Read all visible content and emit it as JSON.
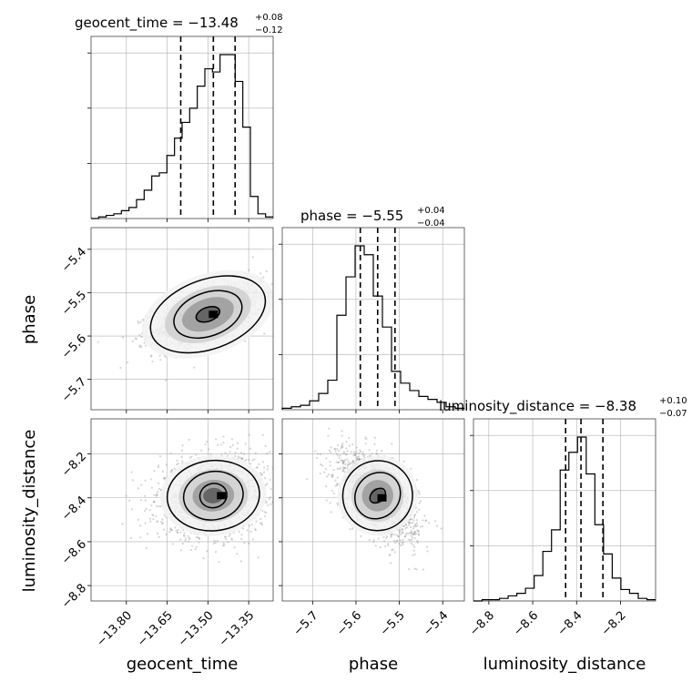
{
  "chart_data": {
    "type": "corner",
    "parameters": [
      "geocent_time",
      "phase",
      "luminosity_distance"
    ],
    "grid": true,
    "colors": {
      "line": "#000000",
      "scatter": "#888888",
      "grid": "#b0b0b0",
      "frame": "#444444"
    },
    "titles": [
      {
        "param": "geocent_time",
        "prefix": "geocent_time = −13.48",
        "plus": "+0.08",
        "minus": "−0.12"
      },
      {
        "param": "phase",
        "prefix": "phase = −5.55",
        "plus": "+0.04",
        "minus": "−0.04"
      },
      {
        "param": "luminosity_distance",
        "prefix": "luminosity_distance = −8.38",
        "plus": "+0.10",
        "minus": "−0.07"
      }
    ],
    "axes": {
      "geocent_time": {
        "range": [
          -13.93,
          -13.26
        ],
        "ticks": [
          -13.8,
          -13.65,
          -13.5,
          -13.35
        ],
        "tick_labels": [
          "−13.80",
          "−13.65",
          "−13.50",
          "−13.35"
        ]
      },
      "phase": {
        "range": [
          -5.77,
          -5.35
        ],
        "ticks": [
          -5.7,
          -5.6,
          -5.5,
          -5.4
        ],
        "tick_labels": [
          "−5.7",
          "−5.6",
          "−5.5",
          "−5.4"
        ]
      },
      "luminosity_distance": {
        "range": [
          -8.87,
          -8.04
        ],
        "ticks": [
          -8.8,
          -8.6,
          -8.4,
          -8.2
        ],
        "tick_labels": [
          "−8.8",
          "−8.6",
          "−8.4",
          "−8.2"
        ]
      }
    },
    "histograms": [
      {
        "param": "geocent_time",
        "bin_edges_range": [
          -13.93,
          -13.26
        ],
        "counts": [
          0,
          1,
          2,
          3,
          5,
          7,
          12,
          18,
          27,
          29,
          40,
          51,
          61,
          70,
          84,
          95,
          93,
          104,
          104,
          87,
          58,
          14,
          3,
          1
        ],
        "quantiles": [
          -13.6,
          -13.48,
          -13.4
        ]
      },
      {
        "param": "phase",
        "bin_edges_range": [
          -5.77,
          -5.35
        ],
        "counts": [
          1,
          2,
          3,
          6,
          11,
          20,
          64,
          90,
          111,
          105,
          77,
          56,
          26,
          18,
          13,
          9,
          7,
          5,
          2,
          1
        ],
        "quantiles": [
          -5.59,
          -5.55,
          -5.51
        ]
      },
      {
        "param": "luminosity_distance",
        "bin_edges_range": [
          -8.87,
          -8.04
        ],
        "counts": [
          0,
          1,
          1,
          2,
          4,
          6,
          10,
          20,
          39,
          56,
          103,
          117,
          129,
          100,
          60,
          37,
          18,
          9,
          6,
          2,
          1
        ],
        "quantiles": [
          -8.45,
          -8.38,
          -8.28
        ]
      }
    ],
    "pairs": [
      {
        "x": "geocent_time",
        "y": "phase",
        "mean": [
          -13.5,
          -5.55
        ],
        "sd": [
          0.1,
          0.035
        ],
        "corr": 0.55,
        "samples": 1700,
        "peak": [
          -13.48,
          -5.55
        ],
        "contours": [
          {
            "level": 0.39,
            "w": [
              0.045,
              0.016
            ],
            "angle_deg": 20
          },
          {
            "level": 0.86,
            "w": [
              0.13,
              0.05
            ],
            "angle_deg": 20
          },
          {
            "level": 0.99,
            "w": [
              0.22,
              0.08
            ],
            "angle_deg": 20
          }
        ]
      },
      {
        "x": "geocent_time",
        "y": "luminosity_distance",
        "mean": [
          -13.48,
          -8.39
        ],
        "sd": [
          0.1,
          0.09
        ],
        "corr": 0.15,
        "samples": 1700,
        "peak": [
          -13.45,
          -8.39
        ],
        "contours": [
          {
            "level": 0.39,
            "w": [
              0.05,
              0.055
            ],
            "angle_deg": 15
          },
          {
            "level": 0.86,
            "w": [
              0.11,
              0.11
            ],
            "angle_deg": 10
          },
          {
            "level": 0.99,
            "w": [
              0.17,
              0.16
            ],
            "angle_deg": 5
          }
        ]
      },
      {
        "x": "phase",
        "y": "luminosity_distance",
        "mean": [
          -5.55,
          -8.39
        ],
        "sd": [
          0.045,
          0.1
        ],
        "corr": -0.55,
        "samples": 1700,
        "peak": [
          -5.54,
          -8.4
        ],
        "contours": [
          {
            "level": 0.39,
            "w": [
              0.014,
              0.04
            ],
            "angle_deg": -50
          },
          {
            "level": 0.86,
            "w": [
              0.05,
              0.11
            ],
            "angle_deg": -40
          },
          {
            "level": 0.99,
            "w": [
              0.08,
              0.16
            ],
            "angle_deg": -40
          }
        ]
      }
    ]
  }
}
